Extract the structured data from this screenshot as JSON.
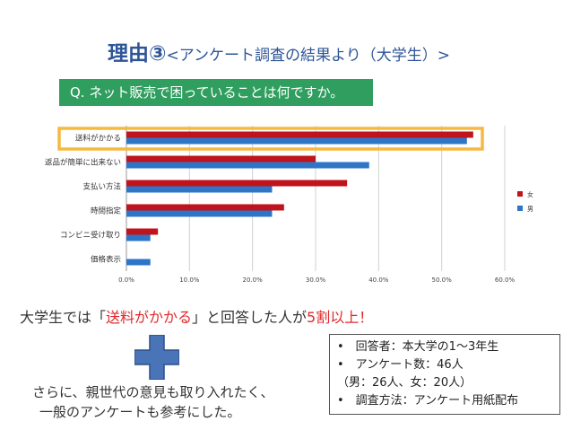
{
  "slide": {
    "title_main": "理由③",
    "title_sub": "<アンケート調査の結果より（大学生）>",
    "question": "Q. ネット販売で困っていることは何ですか。",
    "conclusion_pre": "大学生では「",
    "conclusion_highlight": "送料がかかる",
    "conclusion_mid": "」と回答した人が",
    "conclusion_highlight2": "5割以上！",
    "note_line1": "さらに、親世代の意見も取り入れたく、",
    "note_line2": "一般のアンケートも参考にした。",
    "info": [
      "•　回答者：本大学の1〜3年生",
      "•　アンケート数：46人",
      "（男：26人、女：20人）",
      "•　調査方法：アンケート用紙配布"
    ]
  },
  "colors": {
    "female": "#c0141c",
    "male": "#2e75c8",
    "highlight": "#f5b942",
    "question_bg": "#2f9e5e",
    "plus": "#4a74b8"
  },
  "chart_data": {
    "type": "bar",
    "orientation": "horizontal",
    "categories": [
      "送料がかかる",
      "返品が簡単に出来ない",
      "支払い方法",
      "時間指定",
      "コンビニ受け取り",
      "価格表示"
    ],
    "series": [
      {
        "name": "女",
        "values": [
          55.0,
          30.0,
          35.0,
          25.0,
          5.0,
          0.0
        ]
      },
      {
        "name": "男",
        "values": [
          54.0,
          38.5,
          23.1,
          23.1,
          3.8,
          3.8
        ]
      }
    ],
    "xlim": [
      0,
      60
    ],
    "xticks": [
      "0.0%",
      "10.0%",
      "20.0%",
      "30.0%",
      "40.0%",
      "50.0%",
      "60.0%"
    ],
    "legend": [
      "女",
      "男"
    ],
    "highlighted_category": "送料がかかる"
  }
}
